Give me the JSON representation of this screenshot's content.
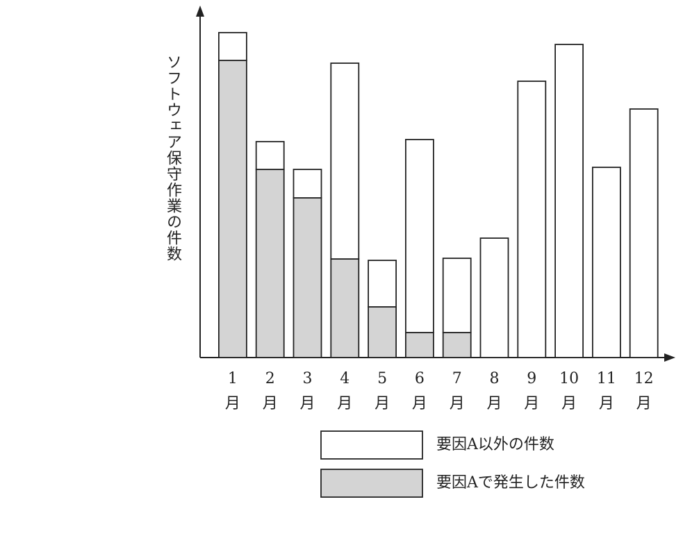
{
  "chart_data": {
    "type": "stacked-bar",
    "y_label": "ソフトウェア保守作業の件数",
    "categories": [
      "1月",
      "2月",
      "3月",
      "4月",
      "5月",
      "6月",
      "7月",
      "8月",
      "9月",
      "10月",
      "11月",
      "12月"
    ],
    "series": [
      {
        "name": "要因Aで発生した件数",
        "color": "#d4d4d4",
        "values": [
          428,
          271,
          230,
          142,
          73,
          36,
          36,
          0,
          0,
          0,
          0,
          0
        ]
      },
      {
        "name": "要因A以外の件数",
        "color": "#ffffff",
        "values": [
          40,
          40,
          41,
          282,
          67,
          278,
          107,
          172,
          398,
          451,
          274,
          358
        ]
      }
    ],
    "ylim": [
      0,
      500
    ]
  }
}
